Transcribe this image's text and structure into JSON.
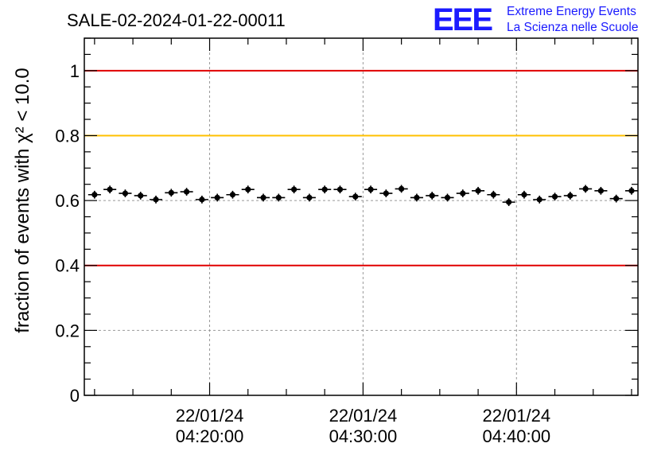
{
  "header": {
    "title": "SALE-02-2024-01-22-00011"
  },
  "logo": {
    "mark": "EEE",
    "line1": "Extreme Energy Events",
    "line2": "La Scienza nelle Scuole",
    "color": "#1a1aff"
  },
  "chart_data": {
    "type": "scatter",
    "title": "SALE-02-2024-01-22-00011",
    "ylabel": "fraction of events with χ² < 10.0",
    "xlabel": "",
    "ylim": [
      0,
      1.1
    ],
    "yticks": [
      {
        "value": 0,
        "label": "0"
      },
      {
        "value": 0.2,
        "label": "0.2"
      },
      {
        "value": 0.4,
        "label": "0.4"
      },
      {
        "value": 0.6,
        "label": "0.6"
      },
      {
        "value": 0.8,
        "label": "0.8"
      },
      {
        "value": 1,
        "label": "1"
      }
    ],
    "xlim": [
      "04:11:50",
      "04:47:55"
    ],
    "xticks": [
      {
        "time": "04:20:00",
        "date": "22/01/24",
        "label_time": "04:20:00"
      },
      {
        "time": "04:30:00",
        "date": "22/01/24",
        "label_time": "04:30:00"
      },
      {
        "time": "04:40:00",
        "date": "22/01/24",
        "label_time": "04:40:00"
      }
    ],
    "grid": true,
    "reference_lines": [
      {
        "value": 1.0,
        "color": "#e00000"
      },
      {
        "value": 0.8,
        "color": "#ffc000"
      },
      {
        "value": 0.4,
        "color": "#e00000"
      }
    ],
    "series": [
      {
        "color": "#000000",
        "half_width_seconds": 25,
        "points": [
          {
            "x": "04:12:30",
            "y": 0.618,
            "err": 0.012
          },
          {
            "x": "04:13:30",
            "y": 0.634,
            "err": 0.012
          },
          {
            "x": "04:14:30",
            "y": 0.622,
            "err": 0.012
          },
          {
            "x": "04:15:30",
            "y": 0.615,
            "err": 0.012
          },
          {
            "x": "04:16:30",
            "y": 0.603,
            "err": 0.012
          },
          {
            "x": "04:17:30",
            "y": 0.624,
            "err": 0.012
          },
          {
            "x": "04:18:30",
            "y": 0.627,
            "err": 0.012
          },
          {
            "x": "04:19:30",
            "y": 0.603,
            "err": 0.012
          },
          {
            "x": "04:20:30",
            "y": 0.609,
            "err": 0.012
          },
          {
            "x": "04:21:30",
            "y": 0.618,
            "err": 0.012
          },
          {
            "x": "04:22:30",
            "y": 0.634,
            "err": 0.012
          },
          {
            "x": "04:23:30",
            "y": 0.609,
            "err": 0.012
          },
          {
            "x": "04:24:30",
            "y": 0.609,
            "err": 0.012
          },
          {
            "x": "04:25:30",
            "y": 0.634,
            "err": 0.012
          },
          {
            "x": "04:26:30",
            "y": 0.609,
            "err": 0.012
          },
          {
            "x": "04:27:30",
            "y": 0.634,
            "err": 0.012
          },
          {
            "x": "04:28:30",
            "y": 0.634,
            "err": 0.012
          },
          {
            "x": "04:29:30",
            "y": 0.612,
            "err": 0.012
          },
          {
            "x": "04:30:30",
            "y": 0.634,
            "err": 0.012
          },
          {
            "x": "04:31:30",
            "y": 0.622,
            "err": 0.012
          },
          {
            "x": "04:32:30",
            "y": 0.636,
            "err": 0.012
          },
          {
            "x": "04:33:30",
            "y": 0.609,
            "err": 0.012
          },
          {
            "x": "04:34:30",
            "y": 0.615,
            "err": 0.012
          },
          {
            "x": "04:35:30",
            "y": 0.609,
            "err": 0.012
          },
          {
            "x": "04:36:30",
            "y": 0.622,
            "err": 0.012
          },
          {
            "x": "04:37:30",
            "y": 0.63,
            "err": 0.012
          },
          {
            "x": "04:38:30",
            "y": 0.618,
            "err": 0.012
          },
          {
            "x": "04:39:30",
            "y": 0.595,
            "err": 0.012
          },
          {
            "x": "04:40:30",
            "y": 0.618,
            "err": 0.012
          },
          {
            "x": "04:41:30",
            "y": 0.603,
            "err": 0.012
          },
          {
            "x": "04:42:30",
            "y": 0.612,
            "err": 0.012
          },
          {
            "x": "04:43:30",
            "y": 0.615,
            "err": 0.012
          },
          {
            "x": "04:44:30",
            "y": 0.636,
            "err": 0.012
          },
          {
            "x": "04:45:30",
            "y": 0.63,
            "err": 0.012
          },
          {
            "x": "04:46:30",
            "y": 0.606,
            "err": 0.012
          },
          {
            "x": "04:47:30",
            "y": 0.63,
            "err": 0.012
          }
        ]
      }
    ]
  }
}
